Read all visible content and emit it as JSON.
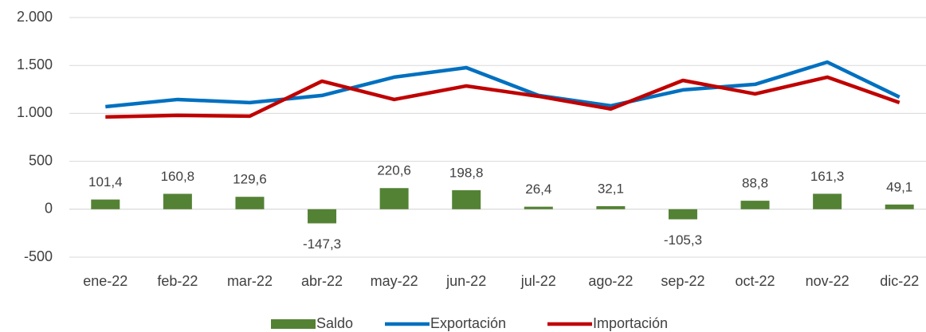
{
  "chart_data": {
    "type": "bar",
    "categories": [
      "ene-22",
      "feb-22",
      "mar-22",
      "abr-22",
      "may-22",
      "jun-22",
      "jul-22",
      "ago-22",
      "sep-22",
      "oct-22",
      "nov-22",
      "dic-22"
    ],
    "series": [
      {
        "name": "Saldo",
        "type": "bar",
        "color": "#548235",
        "values": [
          101.4,
          160.8,
          129.6,
          -147.3,
          220.6,
          198.8,
          26.4,
          32.1,
          -105.3,
          88.8,
          161.3,
          49.1
        ],
        "value_labels": [
          "101,4",
          "160,8",
          "129,6",
          "-147,3",
          "220,6",
          "198,8",
          "26,4",
          "32,1",
          "-105,3",
          "88,8",
          "161,3",
          "49,1"
        ]
      },
      {
        "name": "Exportación",
        "type": "line",
        "color": "#0070c0",
        "values": [
          1070,
          1145,
          1112,
          1187,
          1378,
          1477,
          1187,
          1079,
          1245,
          1303,
          1535,
          1170
        ]
      },
      {
        "name": "Importación",
        "type": "line",
        "color": "#c00000",
        "values": [
          963,
          979,
          971,
          1336,
          1145,
          1286,
          1178,
          1046,
          1344,
          1203,
          1378,
          1112
        ]
      }
    ],
    "ylim": [
      -500,
      2000
    ],
    "yticks": [
      -500,
      0,
      500,
      {
        "value": 1000,
        "label": "1.000"
      },
      {
        "value": 1500,
        "label": "1.500"
      },
      {
        "value": 2000,
        "label": "2.000"
      }
    ],
    "grid": true,
    "legend": "bottom"
  }
}
